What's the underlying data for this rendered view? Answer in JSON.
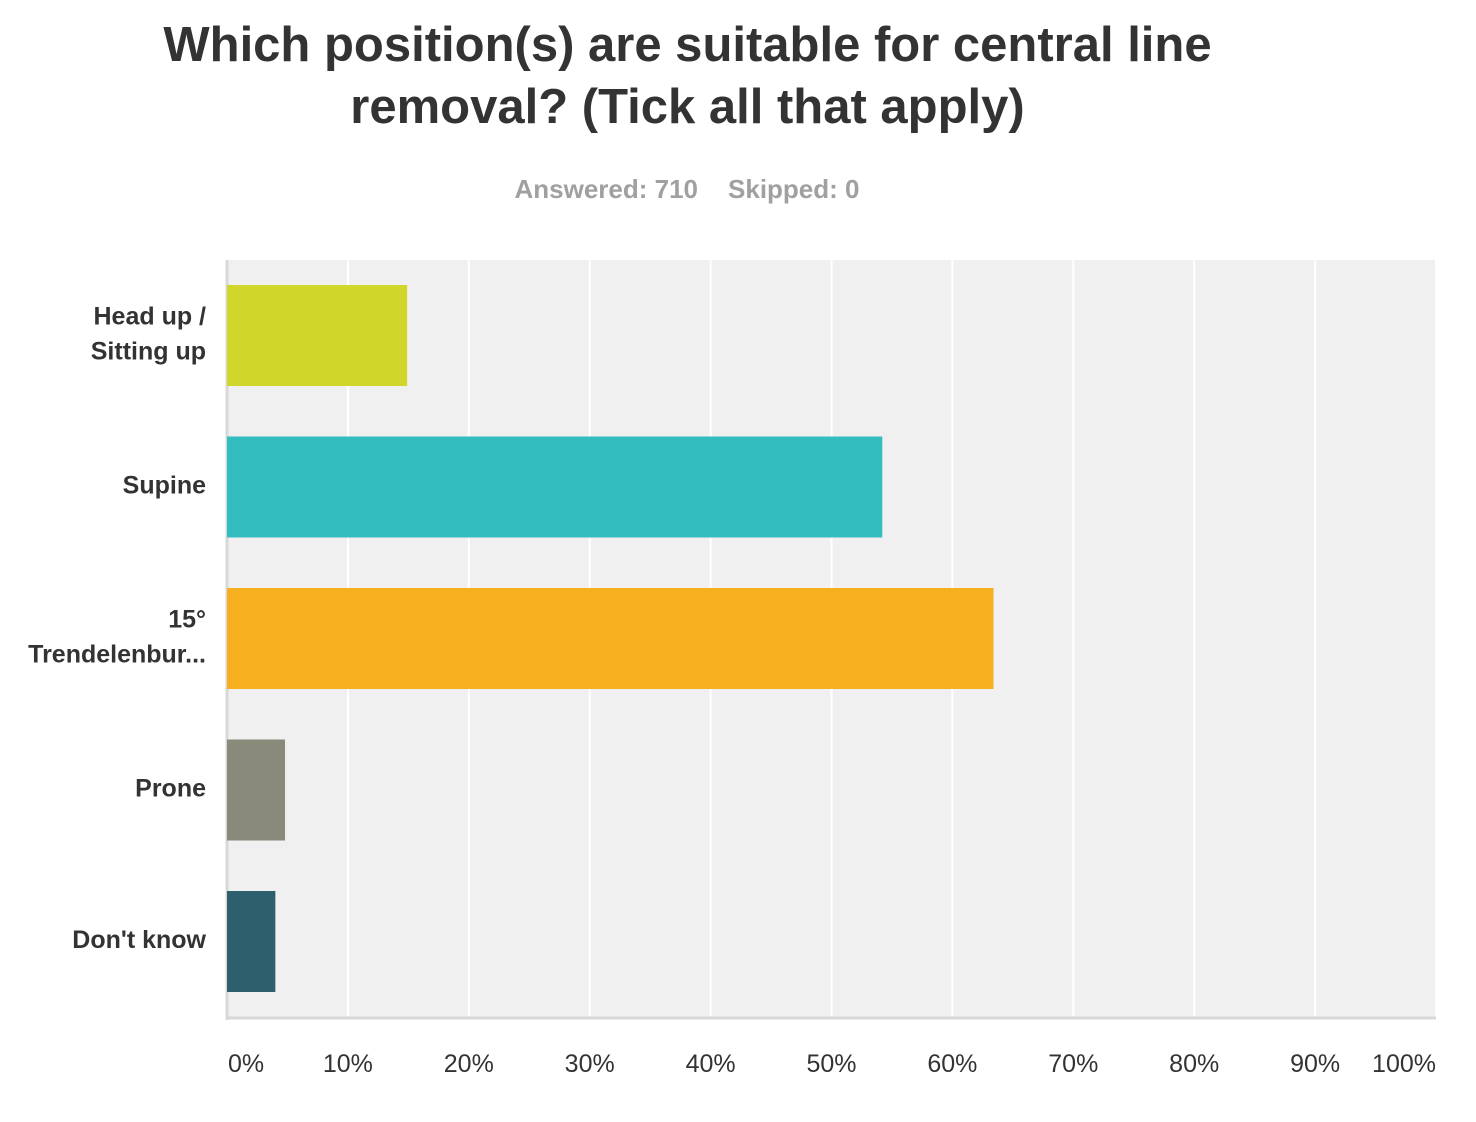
{
  "title": "Which position(s) are suitable for central line removal? (Tick all that apply)",
  "summary": {
    "answered_label": "Answered: 710",
    "skipped_label": "Skipped: 0"
  },
  "colors": {
    "plot_background": "#f0f0f0",
    "gridline": "#ffffff",
    "axis": "#d8d8d8",
    "label_text": "#333333",
    "tick_text": "#333333"
  },
  "chart_data": {
    "type": "bar",
    "orientation": "horizontal",
    "title": "Which position(s) are suitable for central line removal? (Tick all that apply)",
    "categories": [
      [
        "Head up /",
        "Sitting up"
      ],
      [
        "Supine"
      ],
      [
        "15°",
        "Trendelenbur..."
      ],
      [
        "Prone"
      ],
      [
        "Don't know"
      ]
    ],
    "values": [
      14.9,
      54.2,
      63.4,
      4.8,
      4.0
    ],
    "bar_colors": [
      "#d0d72a",
      "#33bdbf",
      "#f5af1f",
      "#898a7a",
      "#2d5f6c"
    ],
    "xlim": [
      0,
      100
    ],
    "x_ticks": [
      "0%",
      "10%",
      "20%",
      "30%",
      "40%",
      "50%",
      "60%",
      "70%",
      "80%",
      "90%",
      "100%"
    ],
    "x_tick_values": [
      0,
      10,
      20,
      30,
      40,
      50,
      60,
      70,
      80,
      90,
      100
    ],
    "grid": true,
    "legend": "none",
    "xlabel": "",
    "ylabel": ""
  }
}
